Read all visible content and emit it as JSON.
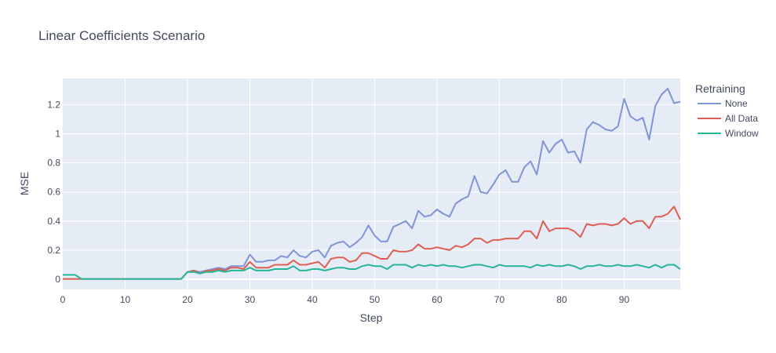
{
  "chart_data": {
    "type": "line",
    "title": "Linear Coefficients Scenario",
    "xlabel": "Step",
    "ylabel": "MSE",
    "xlim": [
      0,
      99
    ],
    "ylim": [
      -0.07,
      1.38
    ],
    "x_ticks": [
      0,
      10,
      20,
      30,
      40,
      50,
      60,
      70,
      80,
      90
    ],
    "x_tick_labels": [
      "0",
      "10",
      "20",
      "30",
      "40",
      "50",
      "60",
      "70",
      "80",
      "90"
    ],
    "y_ticks": [
      0,
      0.2,
      0.4,
      0.6,
      0.8,
      1,
      1.2
    ],
    "y_tick_labels": [
      "0",
      "0.2",
      "0.4",
      "0.6",
      "0.8",
      "1",
      "1.2"
    ],
    "grid": true,
    "legend_title": "Retraining",
    "legend_position": "top-right outside",
    "background_color": "#e5ecf6",
    "series": [
      {
        "name": "None",
        "color": "#8094d6",
        "values": [
          0.002,
          0.002,
          0.002,
          0.002,
          0.002,
          0.002,
          0.002,
          0.002,
          0.002,
          0.002,
          0.002,
          0.002,
          0.002,
          0.002,
          0.002,
          0.002,
          0.002,
          0.002,
          0.002,
          0.002,
          0.05,
          0.06,
          0.05,
          0.06,
          0.07,
          0.08,
          0.07,
          0.09,
          0.09,
          0.09,
          0.17,
          0.12,
          0.12,
          0.13,
          0.13,
          0.16,
          0.15,
          0.2,
          0.16,
          0.15,
          0.19,
          0.2,
          0.15,
          0.23,
          0.25,
          0.26,
          0.22,
          0.25,
          0.29,
          0.37,
          0.3,
          0.26,
          0.26,
          0.36,
          0.38,
          0.4,
          0.35,
          0.47,
          0.43,
          0.44,
          0.48,
          0.45,
          0.43,
          0.52,
          0.55,
          0.57,
          0.71,
          0.6,
          0.59,
          0.65,
          0.72,
          0.75,
          0.67,
          0.67,
          0.77,
          0.81,
          0.72,
          0.95,
          0.87,
          0.93,
          0.96,
          0.87,
          0.88,
          0.8,
          1.03,
          1.08,
          1.06,
          1.03,
          1.02,
          1.05,
          1.24,
          1.12,
          1.09,
          1.11,
          0.96,
          1.19,
          1.27,
          1.31,
          1.21,
          1.22
        ]
      },
      {
        "name": "All Data",
        "color": "#de5f52",
        "values": [
          0.002,
          0.002,
          0.002,
          0.002,
          0.002,
          0.002,
          0.002,
          0.002,
          0.002,
          0.002,
          0.002,
          0.002,
          0.002,
          0.002,
          0.002,
          0.002,
          0.002,
          0.002,
          0.002,
          0.002,
          0.05,
          0.06,
          0.04,
          0.06,
          0.06,
          0.07,
          0.06,
          0.08,
          0.08,
          0.07,
          0.12,
          0.08,
          0.08,
          0.08,
          0.1,
          0.1,
          0.1,
          0.13,
          0.1,
          0.1,
          0.11,
          0.12,
          0.08,
          0.14,
          0.15,
          0.15,
          0.12,
          0.13,
          0.18,
          0.18,
          0.16,
          0.14,
          0.14,
          0.2,
          0.19,
          0.19,
          0.2,
          0.24,
          0.21,
          0.21,
          0.22,
          0.21,
          0.2,
          0.23,
          0.22,
          0.24,
          0.28,
          0.28,
          0.25,
          0.27,
          0.27,
          0.28,
          0.28,
          0.28,
          0.33,
          0.33,
          0.28,
          0.4,
          0.33,
          0.35,
          0.35,
          0.35,
          0.33,
          0.29,
          0.38,
          0.37,
          0.38,
          0.38,
          0.37,
          0.38,
          0.42,
          0.38,
          0.4,
          0.4,
          0.35,
          0.43,
          0.43,
          0.45,
          0.5,
          0.41
        ]
      },
      {
        "name": "Window",
        "color": "#27b598",
        "values": [
          0.03,
          0.03,
          0.03,
          0.002,
          0.002,
          0.002,
          0.002,
          0.002,
          0.002,
          0.002,
          0.002,
          0.002,
          0.002,
          0.002,
          0.002,
          0.002,
          0.002,
          0.002,
          0.002,
          0.002,
          0.05,
          0.05,
          0.04,
          0.05,
          0.05,
          0.06,
          0.05,
          0.06,
          0.06,
          0.06,
          0.08,
          0.06,
          0.06,
          0.06,
          0.07,
          0.07,
          0.07,
          0.09,
          0.06,
          0.06,
          0.07,
          0.07,
          0.06,
          0.07,
          0.08,
          0.08,
          0.07,
          0.07,
          0.09,
          0.1,
          0.09,
          0.09,
          0.07,
          0.1,
          0.1,
          0.1,
          0.08,
          0.1,
          0.09,
          0.1,
          0.09,
          0.1,
          0.09,
          0.09,
          0.08,
          0.09,
          0.1,
          0.1,
          0.09,
          0.08,
          0.1,
          0.09,
          0.09,
          0.09,
          0.09,
          0.08,
          0.1,
          0.09,
          0.1,
          0.09,
          0.09,
          0.1,
          0.09,
          0.07,
          0.09,
          0.09,
          0.1,
          0.09,
          0.09,
          0.1,
          0.09,
          0.09,
          0.1,
          0.09,
          0.08,
          0.1,
          0.08,
          0.1,
          0.1,
          0.07
        ]
      }
    ]
  }
}
